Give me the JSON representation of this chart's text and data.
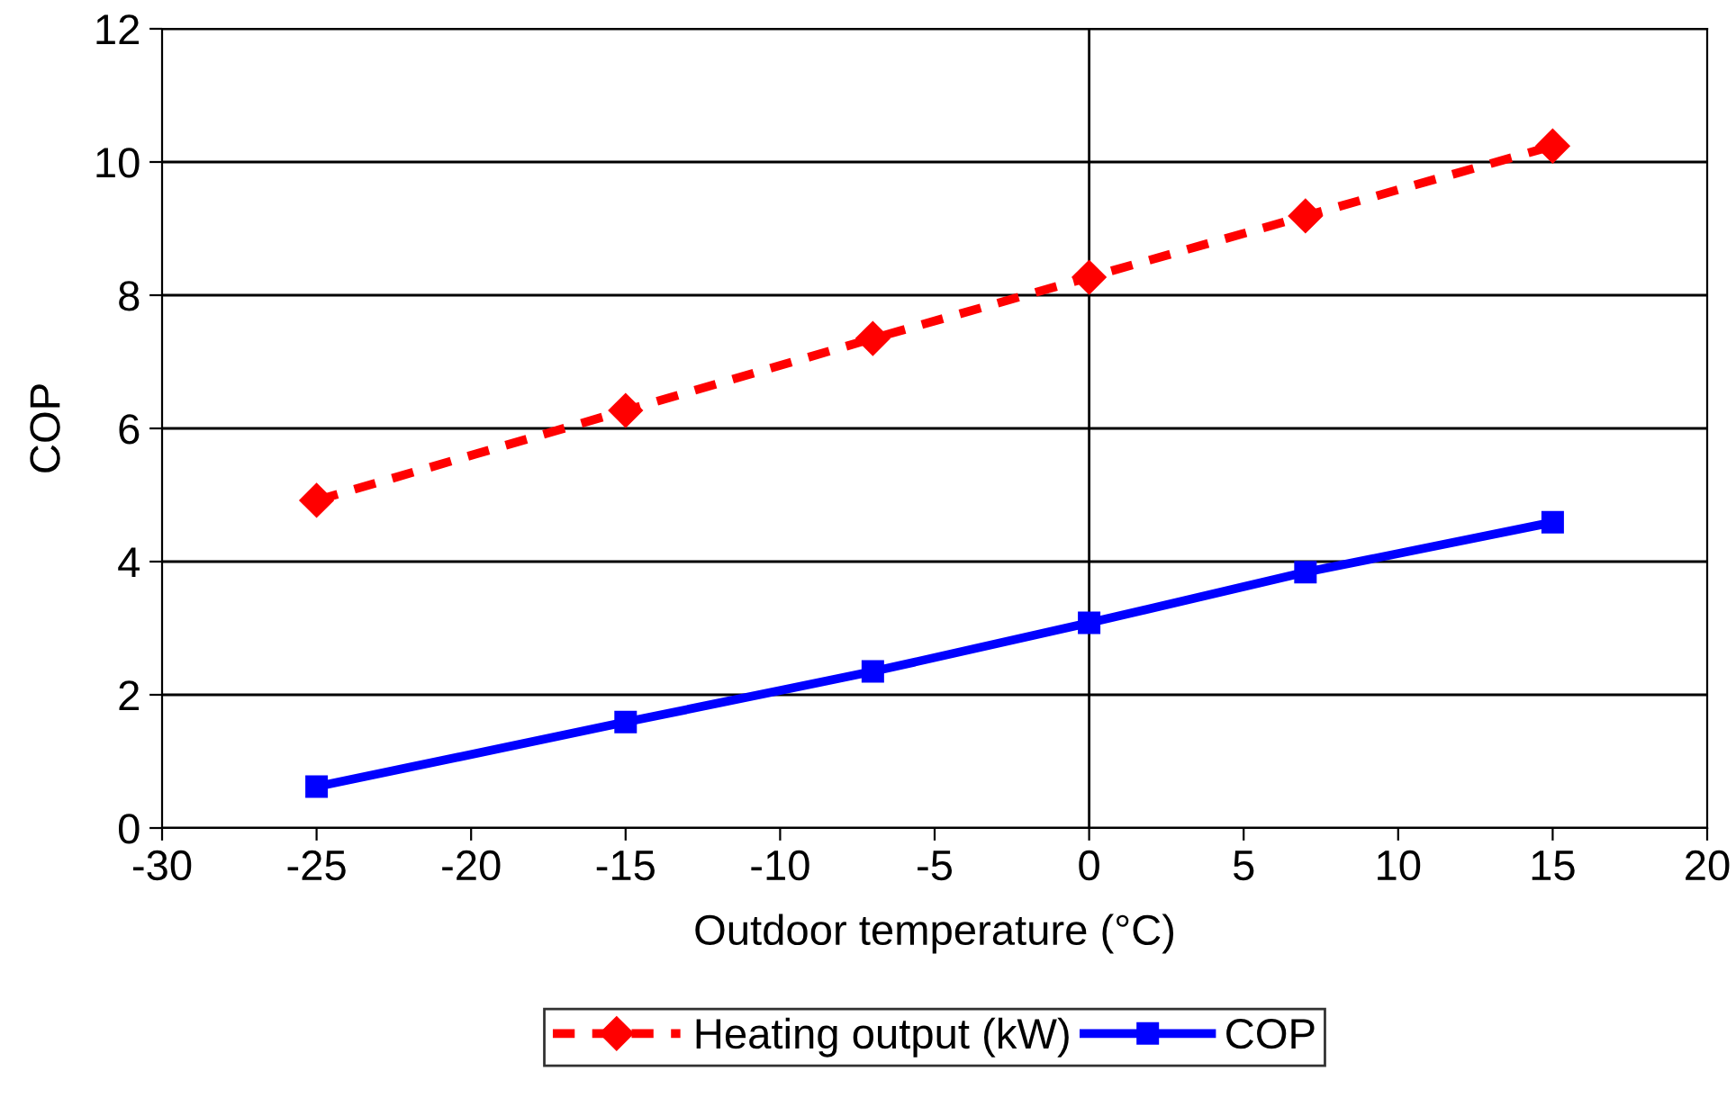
{
  "chart_data": {
    "type": "line",
    "xlabel": "Outdoor temperature (°C)",
    "ylabel": "COP",
    "xlim": [
      -30,
      20
    ],
    "xticks": [
      -30,
      -25,
      -20,
      -15,
      -10,
      -5,
      0,
      5,
      10,
      15,
      20
    ],
    "ylim": [
      0,
      12
    ],
    "yticks": [
      0,
      2,
      4,
      6,
      8,
      10,
      12
    ],
    "grid": "y",
    "legend": "bottom",
    "ref_lines": [
      {
        "axis": "x",
        "value": 0,
        "color": "#000000",
        "line_style": "solid"
      }
    ],
    "series": [
      {
        "name": "Heating output (kW)",
        "color": "#ff0000",
        "marker": "diamond",
        "line_style": "dashed",
        "x": [
          -25,
          -15,
          -7,
          0,
          7,
          15
        ],
        "values": [
          4.92,
          6.27,
          7.35,
          8.27,
          9.19,
          10.24
        ]
      },
      {
        "name": "COP",
        "color": "#0000ff",
        "marker": "square",
        "line_style": "solid",
        "x": [
          -25,
          -15,
          -7,
          0,
          7,
          15
        ],
        "values": [
          0.62,
          1.59,
          2.35,
          3.08,
          3.84,
          4.59
        ]
      }
    ]
  }
}
